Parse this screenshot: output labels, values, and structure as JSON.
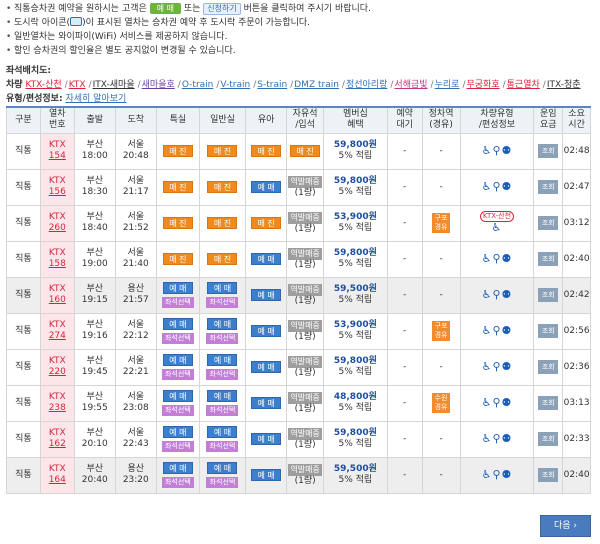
{
  "notes": {
    "line1_pre": "직통승차권 예약을 원하시는 고객은",
    "line1_btn_sold": "예 매",
    "line1_mid": "또는",
    "line1_btn_apply": "신청하기",
    "line1_post": "버튼을 클릭하여 주시기 바랍니다.",
    "line2_pre": "도시락 아이콘(",
    "line2_post": ")이 표시된 열차는 승차권 예약 후 도시락 주문이 가능합니다.",
    "line3": "일반열차는 와이파이(WiFi) 서비스를 제공하지 않습니다.",
    "line4": "할인 승차권의 할인율은 별도 공지없이 변경될 수 있습니다."
  },
  "legend": {
    "seat_label": "좌석배치도:",
    "vehicle_label": "차량",
    "kinds": [
      {
        "text": "KTX-산천",
        "color": "#d8243b"
      },
      {
        "text": "KTX",
        "color": "#d8243b"
      },
      {
        "text": "ITX-새마을",
        "color": "#333333"
      },
      {
        "text": "새마을호",
        "color": "#6b3fa0"
      },
      {
        "text": "O-train",
        "color": "#2f6fb5"
      },
      {
        "text": "V-train",
        "color": "#2f6fb5"
      },
      {
        "text": "S-train",
        "color": "#2f6fb5"
      },
      {
        "text": "DMZ train",
        "color": "#2f6fb5"
      },
      {
        "text": "정선아리랑",
        "color": "#2f6fb5"
      },
      {
        "text": "서해금빛",
        "color": "#c3367f"
      },
      {
        "text": "누리로",
        "color": "#2f6fb5"
      },
      {
        "text": "무궁화호",
        "color": "#d8243b"
      },
      {
        "text": "통근열차",
        "color": "#d8243b"
      },
      {
        "text": "ITX-청춘",
        "color": "#333333"
      }
    ],
    "type_label": "유형/편성정보:",
    "type_link": "자세히 알아보기"
  },
  "table": {
    "headers": [
      "구분",
      "열차 번호",
      "출발",
      "도착",
      "특실",
      "일반실",
      "유아",
      "자유석 /입석",
      "멤버십 혜택",
      "예약 대기",
      "정차역 (경유)",
      "차량유형 /편성정보",
      "운임 요금",
      "소요 시간"
    ],
    "rows": [
      {
        "kind": "직통",
        "train": "KTX",
        "no": "154",
        "dep_st": "부산",
        "dep_t": "18:00",
        "arr_st": "서울",
        "arr_t": "20:48",
        "first": "매 진",
        "economy": "매 진",
        "infant": "매 진",
        "standing": "매 진",
        "fare": "59,800원",
        "acc": "5% 적립",
        "wait": "-",
        "stops": "-",
        "fare_btn": "조회",
        "dur": "02:48",
        "shade": false,
        "state": "all_sold"
      },
      {
        "kind": "직통",
        "train": "KTX",
        "no": "156",
        "dep_st": "부산",
        "dep_t": "18:30",
        "arr_st": "서울",
        "arr_t": "21:17",
        "first": "매 진",
        "economy": "매 진",
        "infant": "예 매",
        "standing": "역발매중",
        "standing2": "(1량)",
        "fare": "59,800원",
        "acc": "5% 적립",
        "wait": "-",
        "stops": "-",
        "fare_btn": "조회",
        "dur": "02:47",
        "shade": false,
        "state": "infant_open"
      },
      {
        "kind": "직통",
        "train": "KTX",
        "no": "260",
        "dep_st": "부산",
        "dep_t": "18:40",
        "arr_st": "서울",
        "arr_t": "21:52",
        "first": "매 진",
        "economy": "매 진",
        "infant": "매 진",
        "standing": "역발매중",
        "standing2": "(1량)",
        "fare": "53,900원",
        "acc": "5% 적립",
        "wait": "-",
        "stops": "구포 경유",
        "vehicle_tag": "KTX-산천",
        "fare_btn": "조회",
        "dur": "03:12",
        "shade": false,
        "state": "all_sold_stand"
      },
      {
        "kind": "직통",
        "train": "KTX",
        "no": "158",
        "dep_st": "부산",
        "dep_t": "19:00",
        "arr_st": "서울",
        "arr_t": "21:40",
        "first": "매 진",
        "economy": "매 진",
        "infant": "예 매",
        "standing": "역발매중",
        "standing2": "(1량)",
        "fare": "59,800원",
        "acc": "5% 적립",
        "wait": "-",
        "stops": "-",
        "fare_btn": "조회",
        "dur": "02:40",
        "shade": false,
        "state": "infant_open"
      },
      {
        "kind": "직통",
        "train": "KTX",
        "no": "160",
        "dep_st": "부산",
        "dep_t": "19:15",
        "arr_st": "용산",
        "arr_t": "21:57",
        "first": "예 매",
        "economy": "예 매",
        "infant": "예 매",
        "standing": "역발매중",
        "standing2": "(1량)",
        "fare": "59,500원",
        "acc": "5% 적립",
        "wait": "-",
        "stops": "-",
        "seat_btn": "좌석선택",
        "fare_btn": "조회",
        "dur": "02:42",
        "shade": true,
        "state": "open"
      },
      {
        "kind": "직통",
        "train": "KTX",
        "no": "274",
        "dep_st": "부산",
        "dep_t": "19:16",
        "arr_st": "서울",
        "arr_t": "22:12",
        "first": "예 매",
        "economy": "예 매",
        "infant": "예 매",
        "standing": "역발매중",
        "standing2": "(1량)",
        "fare": "53,900원",
        "acc": "5% 적립",
        "wait": "-",
        "stops": "구포 경유",
        "seat_btn": "좌석선택",
        "fare_btn": "조회",
        "dur": "02:56",
        "shade": false,
        "state": "open"
      },
      {
        "kind": "직통",
        "train": "KTX",
        "no": "220",
        "dep_st": "부산",
        "dep_t": "19:45",
        "arr_st": "서울",
        "arr_t": "22:21",
        "first": "예 매",
        "economy": "예 매",
        "infant": "예 매",
        "standing": "역발매중",
        "standing2": "(1량)",
        "fare": "59,800원",
        "acc": "5% 적립",
        "wait": "-",
        "stops": "-",
        "seat_btn": "좌석선택",
        "fare_btn": "조회",
        "dur": "02:36",
        "shade": false,
        "state": "open"
      },
      {
        "kind": "직통",
        "train": "KTX",
        "no": "238",
        "dep_st": "부산",
        "dep_t": "19:55",
        "arr_st": "서울",
        "arr_t": "23:08",
        "first": "예 매",
        "economy": "예 매",
        "infant": "예 매",
        "standing": "역발매중",
        "standing2": "(1량)",
        "fare": "48,800원",
        "acc": "5% 적립",
        "wait": "-",
        "stops": "수원 경유",
        "seat_btn": "좌석선택",
        "fare_btn": "조회",
        "dur": "03:13",
        "shade": false,
        "state": "open"
      },
      {
        "kind": "직통",
        "train": "KTX",
        "no": "162",
        "dep_st": "부산",
        "dep_t": "20:10",
        "arr_st": "서울",
        "arr_t": "22:43",
        "first": "예 매",
        "economy": "예 매",
        "infant": "예 매",
        "standing": "역발매중",
        "standing2": "(1량)",
        "fare": "59,800원",
        "acc": "5% 적립",
        "wait": "-",
        "stops": "-",
        "seat_btn": "좌석선택",
        "fare_btn": "조회",
        "dur": "02:33",
        "shade": false,
        "state": "open"
      },
      {
        "kind": "직통",
        "train": "KTX",
        "no": "164",
        "dep_st": "부산",
        "dep_t": "20:40",
        "arr_st": "용산",
        "arr_t": "23:20",
        "first": "예 매",
        "economy": "예 매",
        "infant": "예 매",
        "standing": "역발매중",
        "standing2": "(1량)",
        "fare": "59,500원",
        "acc": "5% 적립",
        "wait": "-",
        "stops": "-",
        "seat_btn": "좌석선택",
        "fare_btn": "조회",
        "dur": "02:40",
        "shade": true,
        "state": "open"
      }
    ]
  },
  "next_button": "다음 ›",
  "colors": {
    "accent": "#4b7bbf",
    "sold": "#f08a1d",
    "reserve": "#3b7fce",
    "seat": "#c37ed8",
    "train": "#d8243b"
  }
}
